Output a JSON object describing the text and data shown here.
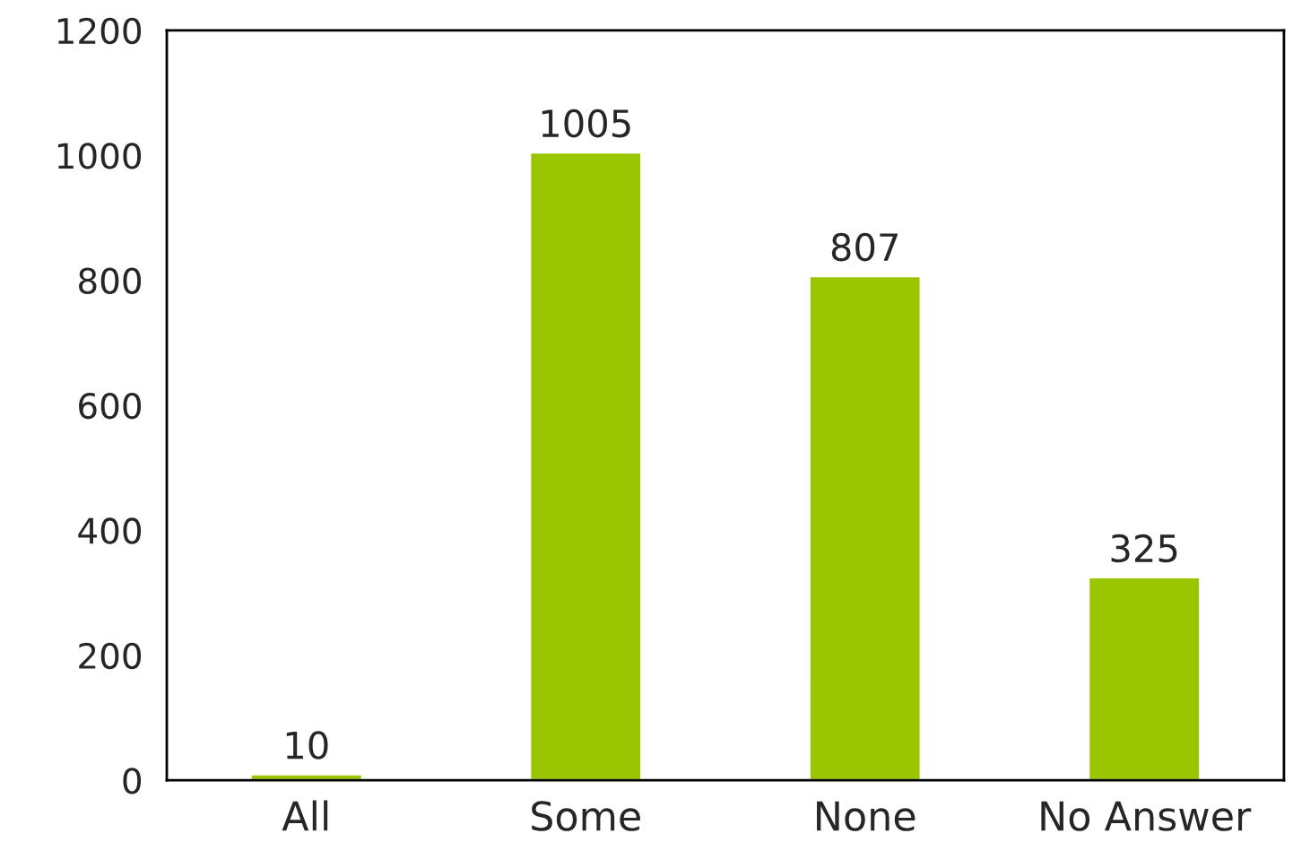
{
  "chart_data": {
    "type": "bar",
    "categories": [
      "All",
      "Some",
      "None",
      "No Answer"
    ],
    "values": [
      10,
      1005,
      807,
      325
    ],
    "color": "#99c600",
    "ylim": [
      0,
      1200
    ],
    "yticks": [
      0,
      200,
      400,
      600,
      800,
      1000,
      1200
    ],
    "data_labels": true,
    "grid": false,
    "legend": false
  }
}
